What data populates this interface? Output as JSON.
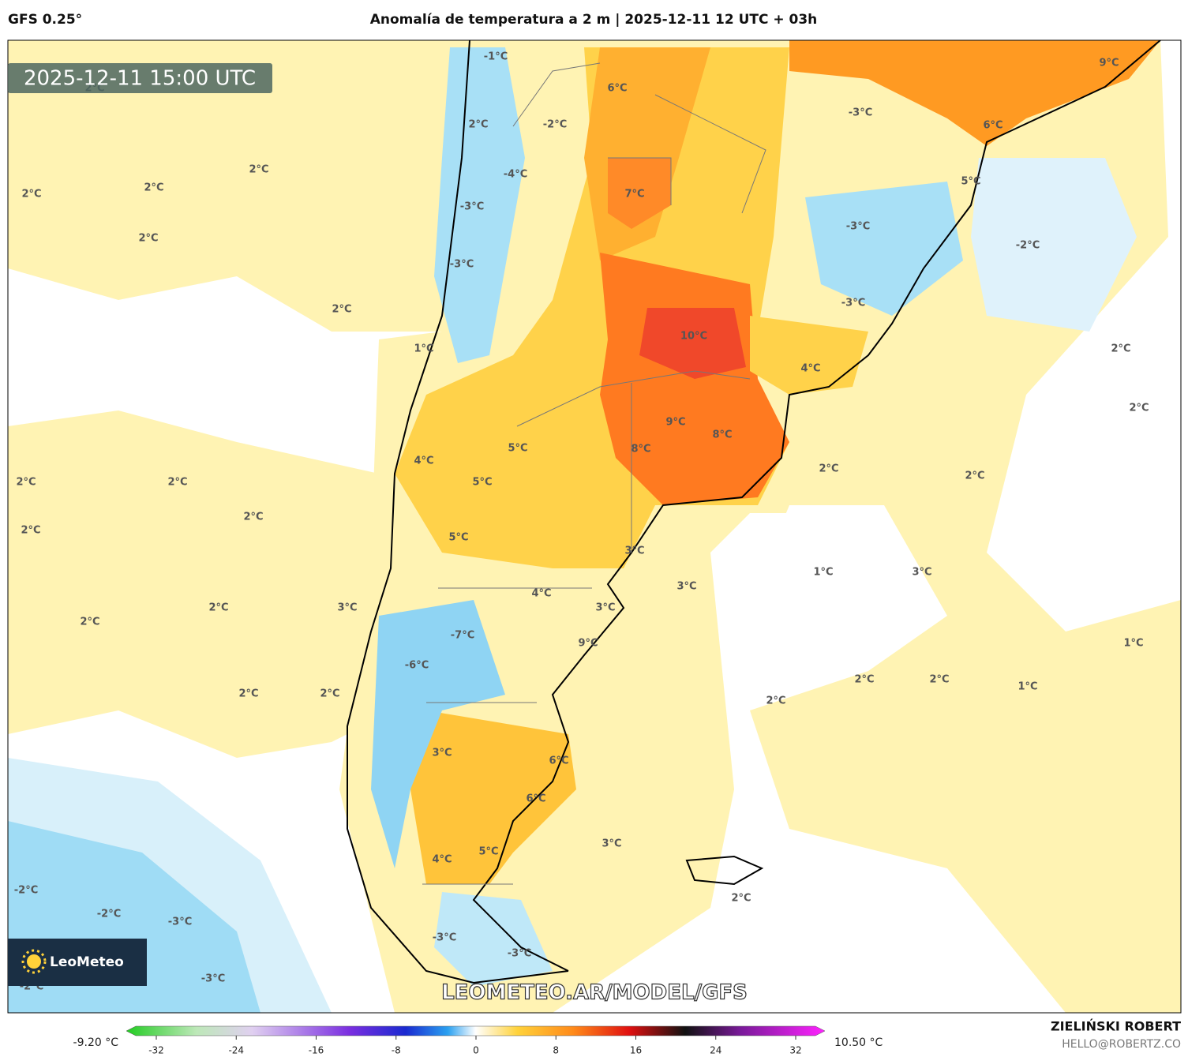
{
  "header": {
    "model": "GFS 0.25°",
    "title": "Anomalía de temperatura a 2 m | 2025-12-11 12 UTC + 03h",
    "valid_time": "2025-12-11 15:00 UTC"
  },
  "map": {
    "labels": [
      "-1°C",
      "2°C",
      "6°C",
      "9°C",
      "-3°C",
      "2°C",
      "-2°C",
      "6°C",
      "2°C",
      "-4°C",
      "5°C",
      "2°C",
      "7°C",
      "2°C",
      "-3°C",
      "-3°C",
      "2°C",
      "-2°C",
      "-3°C",
      "-3°C",
      "2°C",
      "10°C",
      "1°C",
      "2°C",
      "4°C",
      "2°C",
      "9°C",
      "8°C",
      "4°C",
      "5°C",
      "8°C",
      "2°C",
      "2°C",
      "2°C",
      "2°C",
      "5°C",
      "2°C",
      "2°C",
      "5°C",
      "3°C",
      "1°C",
      "3°C",
      "3°C",
      "4°C",
      "3°C",
      "2°C",
      "3°C",
      "2°C",
      "-7°C",
      "9°C",
      "1°C",
      "-6°C",
      "2°C",
      "2°C",
      "1°C",
      "2°C",
      "2°C",
      "2°C",
      "3°C",
      "6°C",
      "6°C",
      "3°C",
      "5°C",
      "4°C",
      "2°C",
      "-2°C",
      "-2°C",
      "-3°C",
      "-3°C",
      "-3°C",
      "-3°C",
      "-2°C"
    ]
  },
  "logo": "LeoMeteo",
  "watermark": "LEOMETEO.AR/MODEL/GFS",
  "colorbar": {
    "min_label": "-9.20 °C",
    "max_label": "10.50 °C",
    "ticks": [
      -32,
      -24,
      -16,
      -8,
      0,
      8,
      16,
      24,
      32
    ]
  },
  "credit": {
    "author": "ZIELIŃSKI ROBERT",
    "email": "HELLO@ROBERTZ.CO"
  }
}
